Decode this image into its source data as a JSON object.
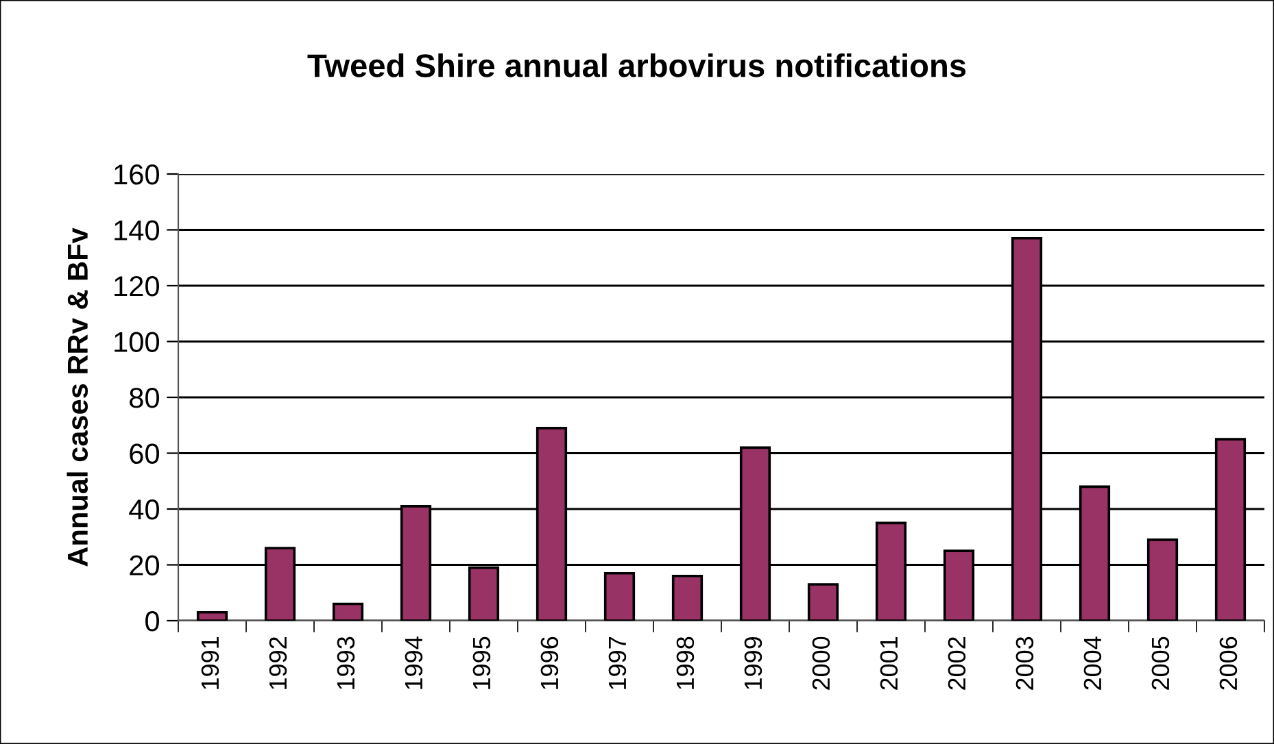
{
  "chart_data": {
    "type": "bar",
    "title": "Tweed Shire annual arbovirus notifications",
    "ylabel": "Annual cases RRv & BFv",
    "categories": [
      "1991",
      "1992",
      "1993",
      "1994",
      "1995",
      "1996",
      "1997",
      "1998",
      "1999",
      "2000",
      "2001",
      "2002",
      "2003",
      "2004",
      "2005",
      "2006"
    ],
    "values": [
      3,
      26,
      6,
      41,
      19,
      69,
      17,
      16,
      62,
      13,
      35,
      25,
      137,
      48,
      29,
      65
    ],
    "color": "#993366",
    "ylim": [
      0,
      160
    ],
    "yticks": [
      0,
      20,
      40,
      60,
      80,
      100,
      120,
      140,
      160
    ],
    "grid": "y",
    "legend": false
  }
}
